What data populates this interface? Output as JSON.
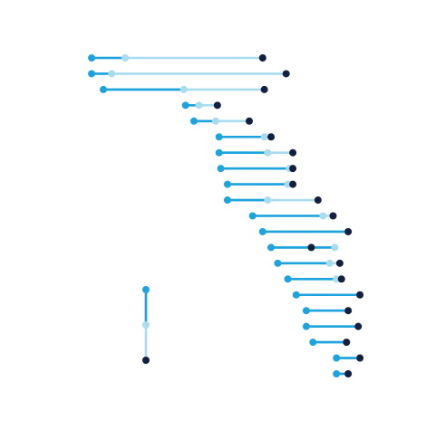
{
  "chart_data": {
    "type": "dumbbell",
    "title": "",
    "xlabel": "",
    "ylabel": "",
    "grid": false,
    "legend": "none",
    "colors": {
      "dark": "#13203f",
      "mid": "#1fa3dc",
      "light": "#a9dcef"
    },
    "x_domain": [
      0,
      100
    ],
    "rows": [
      {
        "a": 3.0,
        "b": 13.0,
        "c": 54.0
      },
      {
        "a": 3.0,
        "b": 9.0,
        "c": 61.0
      },
      {
        "a": 6.5,
        "b": 30.5,
        "c": 54.5
      },
      {
        "a": 31.0,
        "b": 35.0,
        "c": 40.5
      },
      {
        "a": 33.5,
        "b": 40.0,
        "c": 50.0
      },
      {
        "a": 41.0,
        "b": 54.5,
        "c": 56.5
      },
      {
        "a": 41.0,
        "b": 55.5,
        "c": 63.0
      },
      {
        "a": 41.5,
        "b": 62.0,
        "c": 63.0
      },
      {
        "a": 43.5,
        "b": 61.5,
        "c": 63.0
      },
      {
        "a": 43.5,
        "b": 55.5,
        "c": 70.5
      },
      {
        "a": 51.0,
        "b": 72.0,
        "c": 75.0
      },
      {
        "a": 54.0,
        "b": 79.5,
        "c": 79.5
      },
      {
        "a": 56.5,
        "b": 75.5,
        "c": 68.5
      },
      {
        "a": 58.5,
        "b": 74.0,
        "c": 77.0
      },
      {
        "a": 61.5,
        "b": 76.0,
        "c": 77.5
      },
      {
        "a": 64.0,
        "b": 83.0,
        "c": 83.0
      },
      {
        "a": 67.0,
        "b": 79.5,
        "c": 79.5
      },
      {
        "a": 67.0,
        "b": 82.5,
        "c": 82.5
      },
      {
        "a": 69.0,
        "b": 79.0,
        "c": 79.0
      },
      {
        "a": 76.0,
        "b": 83.0,
        "c": 83.0
      },
      {
        "a": 76.0,
        "b": 79.5,
        "c": 79.5
      }
    ]
  },
  "legend": {
    "markers": [
      "mid",
      "light",
      "dark"
    ]
  }
}
